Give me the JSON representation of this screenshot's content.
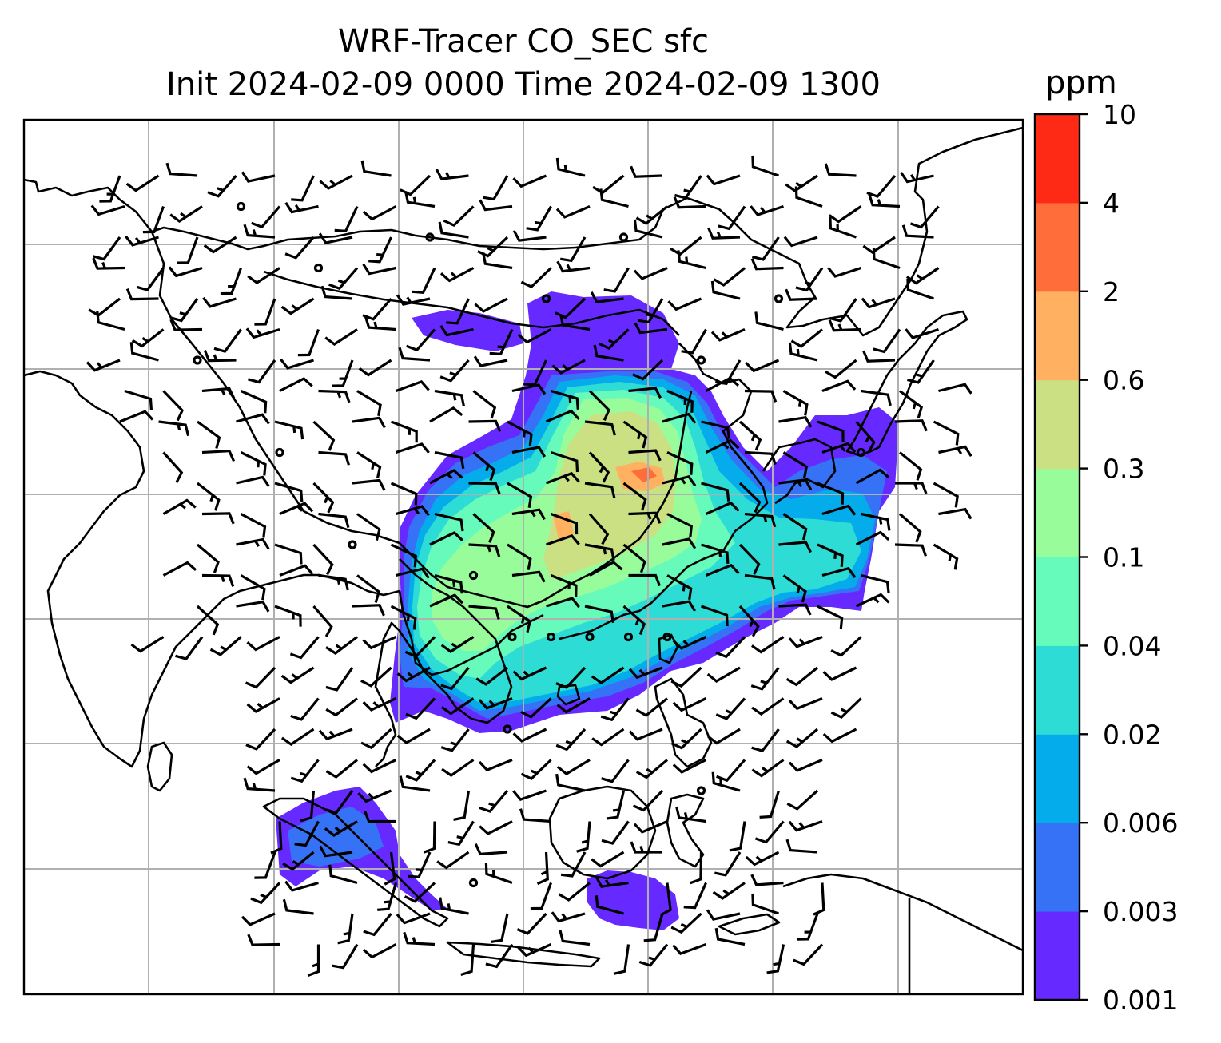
{
  "title": {
    "line1": "WRF-Tracer CO_SEC sfc",
    "line2": "Init 2024-02-09 0000 Time 2024-02-09 1300"
  },
  "colorbar": {
    "units": "ppm",
    "levels": [
      "0.001",
      "0.003",
      "0.006",
      "0.02",
      "0.04",
      "0.1",
      "0.3",
      "0.6",
      "2",
      "4",
      "10"
    ],
    "colors": [
      "#6629ff",
      "#3572f6",
      "#05aceb",
      "#2edcd6",
      "#66fbbb",
      "#98fc9a",
      "#cbe082",
      "#ffb060",
      "#ff6e3a",
      "#ff2a16"
    ]
  },
  "map": {
    "background": "#ffffff",
    "coastline_color": "#000000",
    "grid_color": "#b0b0b0",
    "barb_color": "#000000"
  }
}
